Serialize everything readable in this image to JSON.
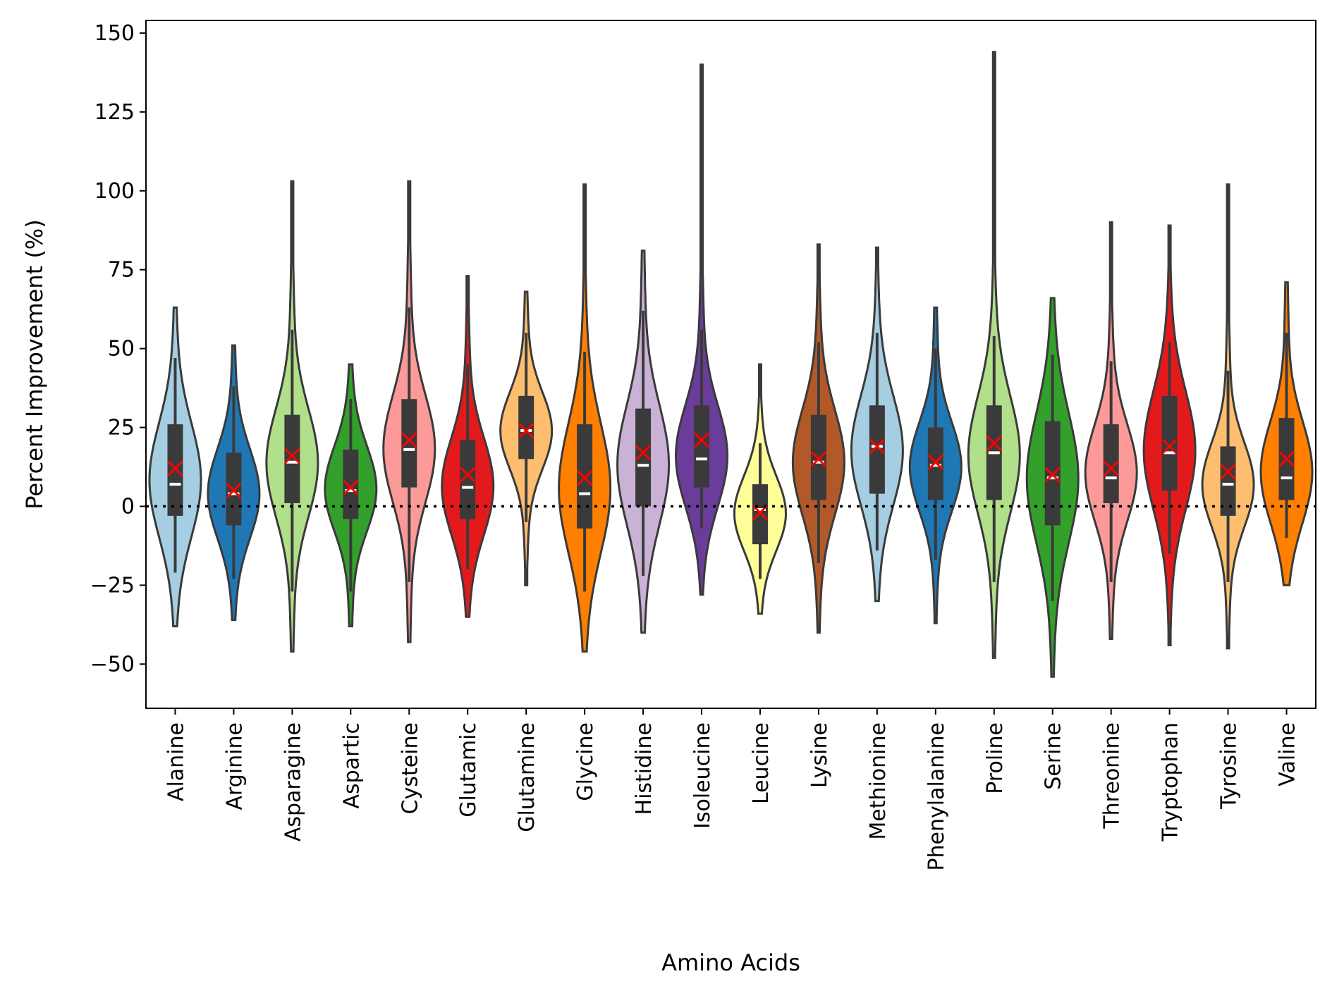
{
  "chart_data": {
    "type": "violin",
    "xlabel": "Amino Acids",
    "ylabel": "Percent Improvement (%)",
    "ylim": [
      -64,
      154
    ],
    "yticks": [
      -50,
      -25,
      0,
      25,
      50,
      75,
      100,
      125,
      150
    ],
    "reference_line": {
      "y": 0,
      "style": "dotted"
    },
    "mean_marker": "x",
    "mean_marker_color": "#ff0000",
    "categories": [
      "Alanine",
      "Arginine",
      "Asparagine",
      "Aspartic",
      "Cysteine",
      "Glutamic",
      "Glutamine",
      "Glycine",
      "Histidine",
      "Isoleucine",
      "Leucine",
      "Lysine",
      "Methionine",
      "Phenylalanine",
      "Proline",
      "Serine",
      "Threonine",
      "Tryptophan",
      "Tyrosine",
      "Valine"
    ],
    "series": [
      {
        "category": "Alanine",
        "color": "#a6cee3",
        "min": -38,
        "max": 63,
        "q1": -3,
        "median": 7,
        "q3": 26,
        "whisker_low": -21,
        "whisker_high": 47,
        "mean": 12
      },
      {
        "category": "Arginine",
        "color": "#1f78b4",
        "min": -36,
        "max": 51,
        "q1": -6,
        "median": 4,
        "q3": 17,
        "whisker_low": -23,
        "whisker_high": 38,
        "mean": 5
      },
      {
        "category": "Asparagine",
        "color": "#b2df8a",
        "min": -46,
        "max": 103,
        "q1": 1,
        "median": 14,
        "q3": 29,
        "whisker_low": -27,
        "whisker_high": 56,
        "mean": 16
      },
      {
        "category": "Aspartic",
        "color": "#33a02c",
        "min": -38,
        "max": 45,
        "q1": -4,
        "median": 5,
        "q3": 18,
        "whisker_low": -27,
        "whisker_high": 34,
        "mean": 6
      },
      {
        "category": "Cysteine",
        "color": "#fb9a99",
        "min": -43,
        "max": 103,
        "q1": 6,
        "median": 18,
        "q3": 34,
        "whisker_low": -24,
        "whisker_high": 63,
        "mean": 21
      },
      {
        "category": "Glutamic",
        "color": "#e31a1c",
        "min": -35,
        "max": 73,
        "q1": -4,
        "median": 6,
        "q3": 21,
        "whisker_low": -20,
        "whisker_high": 45,
        "mean": 10
      },
      {
        "category": "Glutamine",
        "color": "#fdbf6f",
        "min": -25,
        "max": 68,
        "q1": 15,
        "median": 24,
        "q3": 35,
        "whisker_low": -5,
        "whisker_high": 55,
        "mean": 24
      },
      {
        "category": "Glycine",
        "color": "#ff7f00",
        "min": -46,
        "max": 102,
        "q1": -7,
        "median": 4,
        "q3": 26,
        "whisker_low": -27,
        "whisker_high": 49,
        "mean": 9
      },
      {
        "category": "Histidine",
        "color": "#cab2d6",
        "min": -40,
        "max": 81,
        "q1": 0,
        "median": 13,
        "q3": 31,
        "whisker_low": -22,
        "whisker_high": 62,
        "mean": 17
      },
      {
        "category": "Isoleucine",
        "color": "#6a3d9a",
        "min": -28,
        "max": 140,
        "q1": 6,
        "median": 15,
        "q3": 32,
        "whisker_low": -7,
        "whisker_high": 56,
        "mean": 21
      },
      {
        "category": "Leucine",
        "color": "#ffff99",
        "min": -34,
        "max": 45,
        "q1": -12,
        "median": -1,
        "q3": 7,
        "whisker_low": -23,
        "whisker_high": 20,
        "mean": -2
      },
      {
        "category": "Lysine",
        "color": "#b15928",
        "min": -40,
        "max": 83,
        "q1": 2,
        "median": 14,
        "q3": 29,
        "whisker_low": -18,
        "whisker_high": 52,
        "mean": 15
      },
      {
        "category": "Methionine",
        "color": "#a6cee3",
        "min": -30,
        "max": 82,
        "q1": 4,
        "median": 19,
        "q3": 32,
        "whisker_low": -14,
        "whisker_high": 55,
        "mean": 19
      },
      {
        "category": "Phenylalanine",
        "color": "#1f78b4",
        "min": -37,
        "max": 63,
        "q1": 2,
        "median": 13,
        "q3": 25,
        "whisker_low": -17,
        "whisker_high": 50,
        "mean": 14
      },
      {
        "category": "Proline",
        "color": "#b2df8a",
        "min": -48,
        "max": 144,
        "q1": 2,
        "median": 17,
        "q3": 32,
        "whisker_low": -24,
        "whisker_high": 54,
        "mean": 20
      },
      {
        "category": "Serine",
        "color": "#33a02c",
        "min": -54,
        "max": 66,
        "q1": -6,
        "median": 9,
        "q3": 27,
        "whisker_low": -30,
        "whisker_high": 48,
        "mean": 10
      },
      {
        "category": "Threonine",
        "color": "#fb9a99",
        "min": -42,
        "max": 90,
        "q1": 1,
        "median": 9,
        "q3": 26,
        "whisker_low": -24,
        "whisker_high": 46,
        "mean": 12
      },
      {
        "category": "Tryptophan",
        "color": "#e31a1c",
        "min": -44,
        "max": 89,
        "q1": 5,
        "median": 17,
        "q3": 35,
        "whisker_low": -15,
        "whisker_high": 52,
        "mean": 19
      },
      {
        "category": "Tyrosine",
        "color": "#fdbf6f",
        "min": -45,
        "max": 102,
        "q1": -3,
        "median": 7,
        "q3": 19,
        "whisker_low": -24,
        "whisker_high": 43,
        "mean": 11
      },
      {
        "category": "Valine",
        "color": "#ff7f00",
        "min": -25,
        "max": 71,
        "q1": 2,
        "median": 9,
        "q3": 28,
        "whisker_low": -10,
        "whisker_high": 55,
        "mean": 15
      }
    ]
  }
}
